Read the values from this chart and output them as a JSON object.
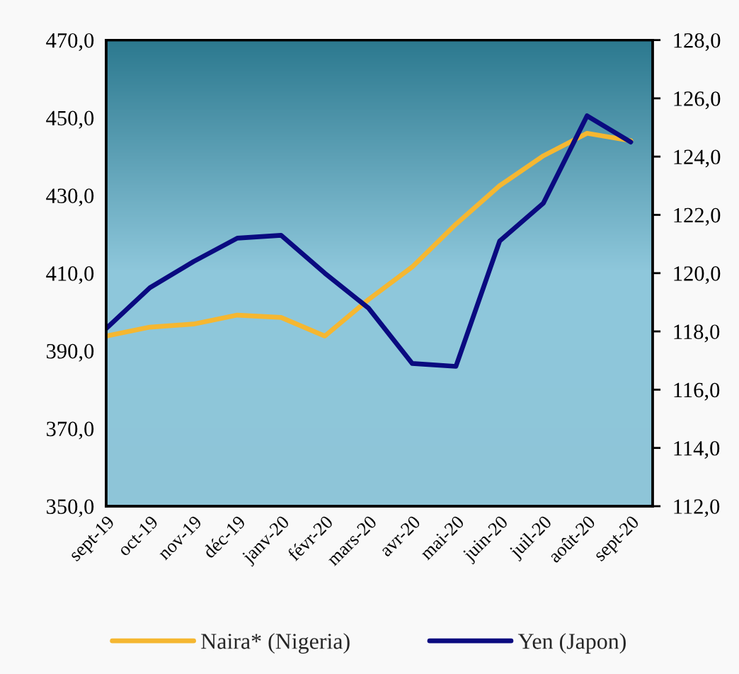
{
  "chart_data": {
    "type": "line",
    "categories": [
      "sept-19",
      "oct-19",
      "nov-19",
      "déc-19",
      "janv-20",
      "févr-20",
      "mars-20",
      "avr-20",
      "mai-20",
      "juin-20",
      "juil-20",
      "août-20",
      "sept-20"
    ],
    "series": [
      {
        "name": "Naira* (Nigeria)",
        "color": "#f5b731",
        "values": [
          393.8,
          396.1,
          396.9,
          399.2,
          398.6,
          393.8,
          403.2,
          411.6,
          422.6,
          432.5,
          440.2,
          446.0,
          444.1
        ]
      },
      {
        "name": "Yen (Japon)",
        "color": "#0a0a80",
        "axis": "y2",
        "values": [
          118.1,
          119.5,
          120.4,
          121.2,
          121.3,
          120.0,
          118.8,
          116.9,
          116.8,
          121.1,
          122.4,
          125.4,
          124.5
        ]
      }
    ],
    "ylim": [
      350,
      470
    ],
    "yticks": [
      {
        "value": 350,
        "label": "350,0"
      },
      {
        "value": 370,
        "label": "370,0"
      },
      {
        "value": 390,
        "label": "390,0"
      },
      {
        "value": 410,
        "label": "410,0"
      },
      {
        "value": 430,
        "label": "430,0"
      },
      {
        "value": 450,
        "label": "450,0"
      },
      {
        "value": 470,
        "label": "470,0"
      }
    ],
    "y2lim": [
      112,
      128
    ],
    "y2ticks": [
      {
        "value": 112,
        "label": "112,0"
      },
      {
        "value": 114,
        "label": "114,0"
      },
      {
        "value": 116,
        "label": "116,0"
      },
      {
        "value": 118,
        "label": "118,0"
      },
      {
        "value": 120,
        "label": "120,0"
      },
      {
        "value": 122,
        "label": "122,0"
      },
      {
        "value": 124,
        "label": "124,0"
      },
      {
        "value": 126,
        "label": "126,0"
      },
      {
        "value": 128,
        "label": "128,0"
      }
    ],
    "legend": "bottom"
  }
}
